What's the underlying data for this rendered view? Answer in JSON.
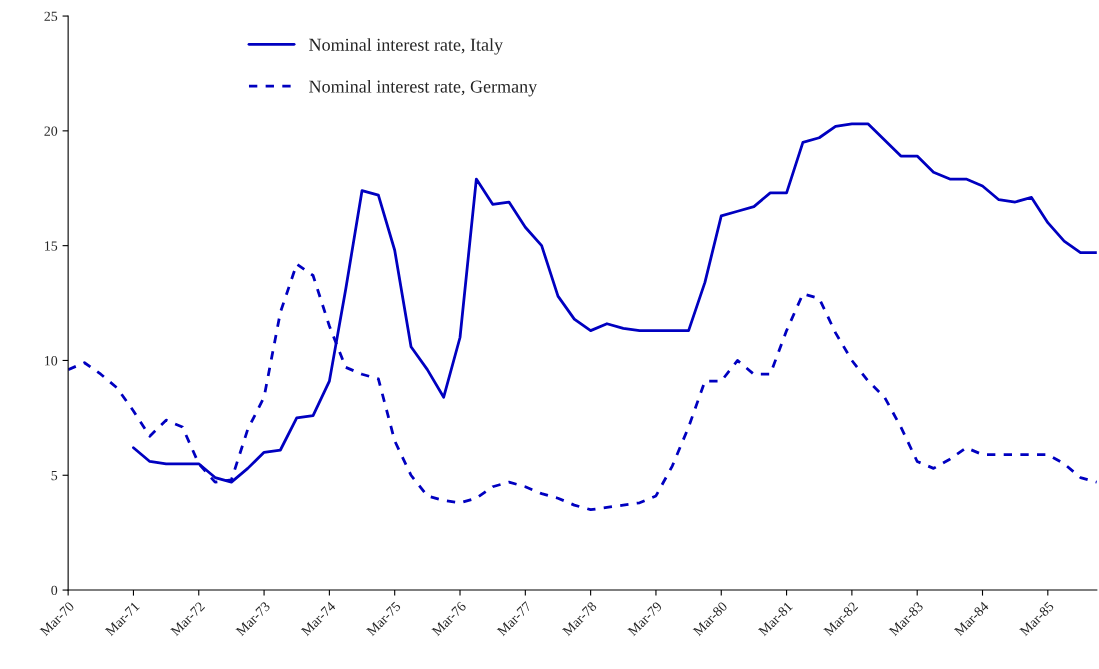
{
  "chart_data": {
    "type": "line",
    "categories": [
      "Mar-70",
      null,
      null,
      null,
      "Mar-71",
      null,
      null,
      null,
      "Mar-72",
      null,
      null,
      null,
      "Mar-73",
      null,
      null,
      null,
      "Mar-74",
      null,
      null,
      null,
      "Mar-75",
      null,
      null,
      null,
      "Mar-76",
      null,
      null,
      null,
      "Mar-77",
      null,
      null,
      null,
      "Mar-78",
      null,
      null,
      null,
      "Mar-79",
      null,
      null,
      null,
      "Mar-80",
      null,
      null,
      null,
      "Mar-81",
      null,
      null,
      null,
      "Mar-82",
      null,
      null,
      null,
      "Mar-83",
      null,
      null,
      null,
      "Mar-84",
      null,
      null,
      null,
      "Mar-85",
      null,
      null,
      null
    ],
    "series": [
      {
        "name": "Nominal interest rate, Italy",
        "color": "#0000c0",
        "line_style": "solid",
        "values": [
          null,
          null,
          null,
          null,
          6.2,
          5.6,
          5.5,
          5.5,
          5.5,
          4.9,
          4.7,
          5.3,
          6.0,
          6.1,
          7.5,
          7.6,
          9.1,
          13.1,
          17.4,
          17.2,
          14.8,
          10.6,
          9.6,
          8.4,
          11.0,
          17.9,
          16.8,
          16.9,
          15.8,
          15.0,
          12.8,
          11.8,
          11.3,
          11.6,
          11.4,
          11.3,
          11.3,
          11.3,
          11.3,
          13.4,
          16.3,
          16.5,
          16.7,
          17.3,
          17.3,
          19.5,
          19.7,
          20.2,
          20.3,
          20.3,
          19.6,
          18.9,
          18.9,
          18.2,
          17.9,
          17.9,
          17.6,
          17.0,
          16.9,
          17.1,
          16.0,
          15.2,
          14.7,
          14.7
        ]
      },
      {
        "name": "Nominal interest rate, Germany",
        "color": "#0000c0",
        "line_style": "dashed",
        "values": [
          9.6,
          9.9,
          9.4,
          8.8,
          7.8,
          6.7,
          7.4,
          7.1,
          5.5,
          4.7,
          4.8,
          7.0,
          8.4,
          12.1,
          14.2,
          13.7,
          11.5,
          9.7,
          9.4,
          9.2,
          6.5,
          5.0,
          4.1,
          3.9,
          3.8,
          4.0,
          4.5,
          4.7,
          4.5,
          4.2,
          4.0,
          3.7,
          3.5,
          3.6,
          3.7,
          3.8,
          4.1,
          5.4,
          7.1,
          9.1,
          9.1,
          10.0,
          9.4,
          9.4,
          11.3,
          12.9,
          12.7,
          11.2,
          10.0,
          9.1,
          8.4,
          7.1,
          5.6,
          5.3,
          5.7,
          6.2,
          5.9,
          5.9,
          5.9,
          5.9,
          5.9,
          5.5,
          4.9,
          4.7
        ]
      }
    ],
    "ylim": [
      0,
      25
    ],
    "yticks": [
      0,
      5,
      10,
      15,
      20,
      25
    ],
    "grid": false,
    "legend": "top left",
    "marker": "none"
  }
}
